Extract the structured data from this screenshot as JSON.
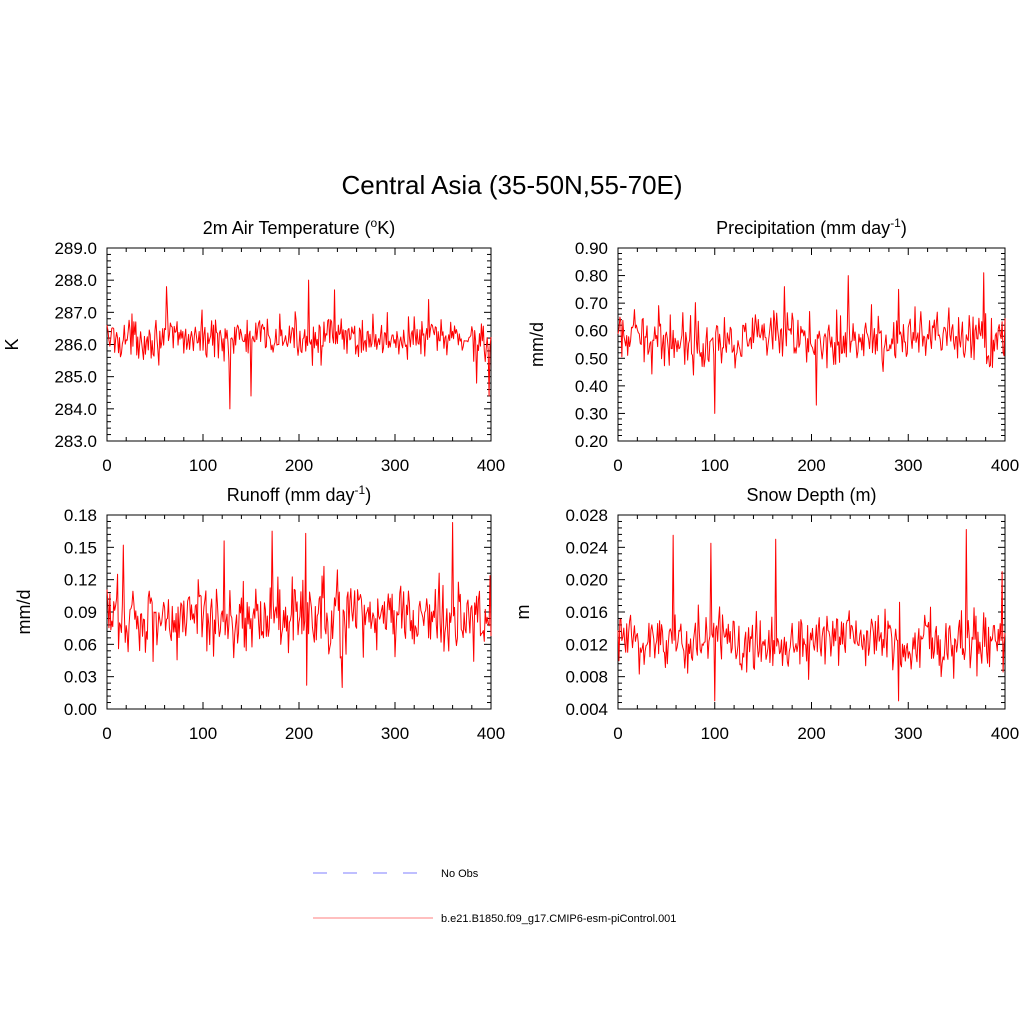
{
  "figure": {
    "title": "Central Asia (35-50N,55-70E)"
  },
  "legend": {
    "entries": [
      {
        "label": "No Obs",
        "color": "#9999ff",
        "style": "dashed"
      },
      {
        "label": "b.e21.B1850.f09_g17.CMIP6-esm-piControl.001",
        "color": "#ff9999",
        "style": "solid"
      }
    ]
  },
  "chart_data": [
    {
      "type": "line",
      "title": "2m Air Temperature (",
      "title_sup": "o",
      "title_tail": "K)",
      "xlabel": "",
      "ylabel": "K",
      "xlim": [
        0,
        400
      ],
      "ylim": [
        283.0,
        289.0
      ],
      "xticks": [
        0,
        100,
        200,
        300,
        400
      ],
      "xtick_labels": [
        "0",
        "100",
        "200",
        "300",
        "400"
      ],
      "yticks": [
        283.0,
        284.0,
        285.0,
        286.0,
        287.0,
        288.0,
        289.0
      ],
      "ytick_labels": [
        "283.0",
        "284.0",
        "285.0",
        "286.0",
        "287.0",
        "288.0",
        "289.0"
      ],
      "series_color": "#ff0000",
      "series": [
        {
          "name": "b.e21.B1850.f09_g17.CMIP6-esm-piControl.001",
          "mean": 286.2,
          "spread": 0.55,
          "spikes": [
            [
              62,
              287.8
            ],
            [
              128,
              284.0
            ],
            [
              150,
              284.4
            ],
            [
              210,
              288.0
            ],
            [
              237,
              287.7
            ],
            [
              335,
              287.4
            ],
            [
              385,
              284.8
            ],
            [
              398,
              284.4
            ]
          ]
        }
      ]
    },
    {
      "type": "line",
      "title": "Precipitation (mm day",
      "title_sup": "-1",
      "title_tail": ")",
      "xlabel": "",
      "ylabel": "mm/d",
      "xlim": [
        0,
        400
      ],
      "ylim": [
        0.2,
        0.9
      ],
      "xticks": [
        0,
        100,
        200,
        300,
        400
      ],
      "xtick_labels": [
        "0",
        "100",
        "200",
        "300",
        "400"
      ],
      "yticks": [
        0.2,
        0.3,
        0.4,
        0.5,
        0.6,
        0.7,
        0.8,
        0.9
      ],
      "ytick_labels": [
        "0.20",
        "0.30",
        "0.40",
        "0.50",
        "0.60",
        "0.70",
        "0.80",
        "0.90"
      ],
      "series_color": "#ff0000",
      "series": [
        {
          "name": "b.e21.B1850.f09_g17.CMIP6-esm-piControl.001",
          "mean": 0.57,
          "spread": 0.085,
          "spikes": [
            [
              100,
              0.3
            ],
            [
              205,
              0.33
            ],
            [
              238,
              0.8
            ],
            [
              378,
              0.81
            ],
            [
              172,
              0.76
            ],
            [
              290,
              0.75
            ]
          ]
        }
      ]
    },
    {
      "type": "line",
      "title": "Runoff (mm day",
      "title_sup": "-1",
      "title_tail": ")",
      "xlabel": "",
      "ylabel": "mm/d",
      "xlim": [
        0,
        400
      ],
      "ylim": [
        0.0,
        0.18
      ],
      "xticks": [
        0,
        100,
        200,
        300,
        400
      ],
      "xtick_labels": [
        "0",
        "100",
        "200",
        "300",
        "400"
      ],
      "yticks": [
        0.0,
        0.03,
        0.06,
        0.09,
        0.12,
        0.15,
        0.18
      ],
      "ytick_labels": [
        "0.00",
        "0.03",
        "0.06",
        "0.09",
        "0.12",
        "0.15",
        "0.18"
      ],
      "series_color": "#ff0000",
      "series": [
        {
          "name": "b.e21.B1850.f09_g17.CMIP6-esm-piControl.001",
          "mean": 0.085,
          "spread": 0.03,
          "spikes": [
            [
              17,
              0.152
            ],
            [
              122,
              0.156
            ],
            [
              172,
              0.165
            ],
            [
              207,
              0.163
            ],
            [
              208,
              0.022
            ],
            [
              245,
              0.02
            ],
            [
              360,
              0.173
            ]
          ]
        }
      ]
    },
    {
      "type": "line",
      "title": "Snow Depth (m)",
      "title_sup": "",
      "title_tail": "",
      "xlabel": "",
      "ylabel": "m",
      "xlim": [
        0,
        400
      ],
      "ylim": [
        0.004,
        0.028
      ],
      "xticks": [
        0,
        100,
        200,
        300,
        400
      ],
      "xtick_labels": [
        "0",
        "100",
        "200",
        "300",
        "400"
      ],
      "yticks": [
        0.004,
        0.008,
        0.012,
        0.016,
        0.02,
        0.024,
        0.028
      ],
      "ytick_labels": [
        "0.004",
        "0.008",
        "0.012",
        "0.016",
        "0.020",
        "0.024",
        "0.028"
      ],
      "series_color": "#ff0000",
      "series": [
        {
          "name": "b.e21.B1850.f09_g17.CMIP6-esm-piControl.001",
          "mean": 0.0125,
          "spread": 0.0035,
          "spikes": [
            [
              57,
              0.0255
            ],
            [
              96,
              0.0245
            ],
            [
              100,
              0.005
            ],
            [
              163,
              0.025
            ],
            [
              290,
              0.005
            ],
            [
              360,
              0.0262
            ],
            [
              397,
              0.021
            ]
          ]
        }
      ]
    }
  ]
}
